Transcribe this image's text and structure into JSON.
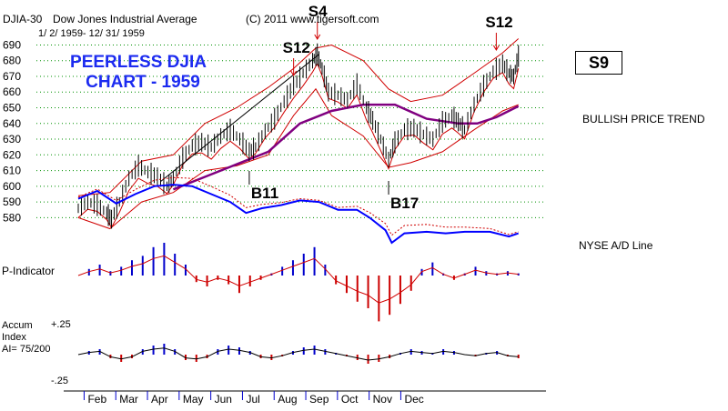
{
  "header": {
    "symbol": "DJIA-30",
    "name": "Dow Jones Industrial Average",
    "date_range": "1/ 2/ 1959- 12/ 31/ 1959",
    "copyright": "(C) 2011 www.tigersoft.com"
  },
  "headline": {
    "line1": "PEERLESS DJIA",
    "line2": "CHART - 1959"
  },
  "signal_box": "S9",
  "labels": {
    "trend": "BULLISH PRICE TREND",
    "ad_line": "NYSE A/D Line",
    "p_indicator": "P-Indicator",
    "accum_line1": "Accum",
    "accum_line2": "Index",
    "accum_line3": "AI= 75/200",
    "accum_plus": "+.25",
    "accum_minus": "-.25"
  },
  "colors": {
    "price": "#000000",
    "band": "#d00000",
    "ma": "#800080",
    "ad": "#0000ff",
    "headline": "#1c2bf0",
    "grid": "#009000",
    "bar_pos": "#0000cc",
    "bar_neg": "#cc0000"
  },
  "chart_data": {
    "type": "line",
    "title": "Dow Jones Industrial Average 1959",
    "y_ticks": [
      690,
      680,
      670,
      660,
      650,
      640,
      630,
      620,
      610,
      600,
      590,
      580
    ],
    "ylim": [
      575,
      692
    ],
    "months": [
      "Feb",
      "Mar",
      "Apr",
      "May",
      "Jun",
      "Jul",
      "Aug",
      "Sep",
      "Oct",
      "Nov",
      "Dec"
    ],
    "price": [
      [
        0.0,
        586
      ],
      [
        0.3,
        590
      ],
      [
        0.6,
        588
      ],
      [
        0.9,
        583
      ],
      [
        1.05,
        579
      ],
      [
        1.3,
        590
      ],
      [
        1.6,
        605
      ],
      [
        1.9,
        613
      ],
      [
        2.2,
        609
      ],
      [
        2.5,
        606
      ],
      [
        2.8,
        600
      ],
      [
        3.0,
        605
      ],
      [
        3.3,
        618
      ],
      [
        3.6,
        626
      ],
      [
        3.9,
        628
      ],
      [
        4.2,
        625
      ],
      [
        4.5,
        632
      ],
      [
        4.8,
        636
      ],
      [
        5.1,
        630
      ],
      [
        5.4,
        622
      ],
      [
        5.6,
        625
      ],
      [
        5.9,
        635
      ],
      [
        6.2,
        643
      ],
      [
        6.5,
        654
      ],
      [
        6.8,
        664
      ],
      [
        7.1,
        672
      ],
      [
        7.4,
        680
      ],
      [
        7.55,
        684
      ],
      [
        7.7,
        675
      ],
      [
        7.9,
        660
      ],
      [
        8.2,
        658
      ],
      [
        8.5,
        655
      ],
      [
        8.8,
        665
      ],
      [
        9.1,
        650
      ],
      [
        9.3,
        642
      ],
      [
        9.55,
        630
      ],
      [
        9.8,
        617
      ],
      [
        10.0,
        628
      ],
      [
        10.3,
        636
      ],
      [
        10.6,
        637
      ],
      [
        10.9,
        633
      ],
      [
        11.2,
        630
      ],
      [
        11.5,
        641
      ],
      [
        11.8,
        645
      ],
      [
        12.0,
        641
      ],
      [
        12.2,
        636
      ],
      [
        12.5,
        652
      ],
      [
        12.8,
        664
      ],
      [
        13.1,
        673
      ],
      [
        13.4,
        678
      ],
      [
        13.6,
        672
      ],
      [
        13.75,
        670
      ],
      [
        13.9,
        683
      ]
    ],
    "upper_band": [
      [
        0.0,
        594
      ],
      [
        1.0,
        596
      ],
      [
        2.0,
        616
      ],
      [
        3.0,
        620
      ],
      [
        4.0,
        640
      ],
      [
        5.0,
        650
      ],
      [
        6.0,
        663
      ],
      [
        6.8,
        675
      ],
      [
        7.5,
        688
      ],
      [
        8.0,
        690
      ],
      [
        9.0,
        680
      ],
      [
        9.8,
        662
      ],
      [
        10.5,
        654
      ],
      [
        11.5,
        658
      ],
      [
        12.5,
        672
      ],
      [
        13.4,
        685
      ],
      [
        13.9,
        694
      ]
    ],
    "lower_band": [
      [
        0.0,
        580
      ],
      [
        1.0,
        573
      ],
      [
        2.0,
        590
      ],
      [
        3.0,
        596
      ],
      [
        4.0,
        610
      ],
      [
        5.0,
        613
      ],
      [
        6.0,
        620
      ],
      [
        6.8,
        645
      ],
      [
        7.5,
        662
      ],
      [
        8.0,
        645
      ],
      [
        9.0,
        632
      ],
      [
        9.8,
        612
      ],
      [
        10.5,
        615
      ],
      [
        11.5,
        622
      ],
      [
        12.5,
        636
      ],
      [
        13.4,
        648
      ],
      [
        13.9,
        652
      ]
    ],
    "moving_avg": [
      [
        3.0,
        598
      ],
      [
        4.0,
        606
      ],
      [
        5.0,
        614
      ],
      [
        6.0,
        622
      ],
      [
        7.0,
        640
      ],
      [
        8.0,
        648
      ],
      [
        9.0,
        652
      ],
      [
        10.0,
        652
      ],
      [
        11.0,
        643
      ],
      [
        12.0,
        640
      ],
      [
        12.6,
        640
      ],
      [
        13.2,
        644
      ],
      [
        13.9,
        651
      ]
    ],
    "ad_line": [
      [
        0.0,
        592
      ],
      [
        0.6,
        597
      ],
      [
        1.2,
        589
      ],
      [
        1.8,
        595
      ],
      [
        2.4,
        600
      ],
      [
        3.0,
        601
      ],
      [
        3.6,
        600
      ],
      [
        4.2,
        595
      ],
      [
        4.8,
        590
      ],
      [
        5.3,
        583
      ],
      [
        5.8,
        586
      ],
      [
        6.4,
        588
      ],
      [
        7.0,
        591
      ],
      [
        7.6,
        590
      ],
      [
        8.2,
        585
      ],
      [
        8.8,
        585
      ],
      [
        9.2,
        580
      ],
      [
        9.7,
        572
      ],
      [
        9.9,
        564
      ],
      [
        10.3,
        570
      ],
      [
        11.0,
        571
      ],
      [
        11.6,
        570
      ],
      [
        12.2,
        571
      ],
      [
        13.0,
        571
      ],
      [
        13.6,
        568
      ],
      [
        13.9,
        570
      ]
    ],
    "signals": [
      {
        "label": "S12",
        "at": 6.8,
        "dir": "sell"
      },
      {
        "label": "S4",
        "at": 7.55,
        "dir": "sell"
      },
      {
        "label": "B11",
        "at": 5.4,
        "dir": "buy"
      },
      {
        "label": "B17",
        "at": 9.8,
        "dir": "buy"
      },
      {
        "label": "S12",
        "at": 13.2,
        "dir": "sell"
      }
    ],
    "p_indicator": [
      0,
      6,
      10,
      4,
      8,
      14,
      18,
      26,
      30,
      20,
      10,
      -6,
      -10,
      -4,
      -8,
      -16,
      -10,
      -4,
      2,
      8,
      14,
      20,
      26,
      10,
      -8,
      -16,
      -24,
      -30,
      -42,
      -36,
      -26,
      -14,
      6,
      12,
      2,
      -4,
      2,
      8,
      4,
      2,
      4,
      2
    ],
    "accum_index": [
      0,
      4,
      6,
      -4,
      -8,
      -4,
      6,
      10,
      12,
      6,
      -6,
      -8,
      -4,
      6,
      10,
      8,
      4,
      -4,
      -6,
      -2,
      4,
      8,
      10,
      6,
      2,
      -2,
      -6,
      -10,
      -8,
      -4,
      2,
      6,
      4,
      2,
      6,
      4,
      0,
      -2,
      2,
      4,
      -2,
      -4
    ]
  }
}
